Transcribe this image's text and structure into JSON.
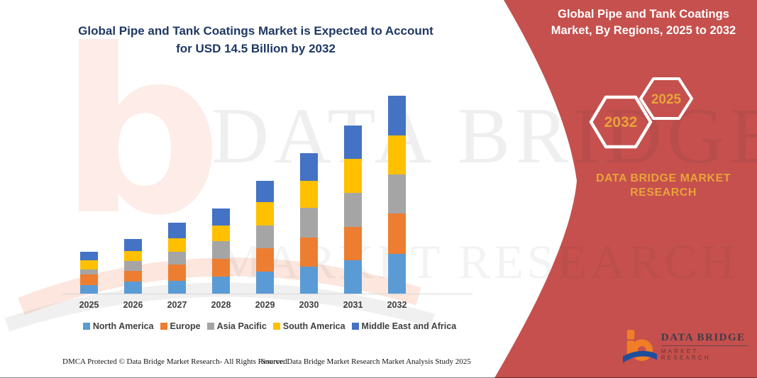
{
  "page": {
    "title_line1": "Global Pipe and Tank Coatings Market is Expected to Account",
    "title_line2": "for USD 14.5 Billion by 2032",
    "title_color": "#1F3864"
  },
  "banner": {
    "heading_line1": "Global Pipe and Tank Coatings",
    "heading_line2": "Market, By Regions, 2025 to 2032",
    "hexagons": [
      {
        "label": "2032"
      },
      {
        "label": "2025"
      }
    ],
    "brand_line1": "DATA BRIDGE MARKET",
    "brand_line2": "RESEARCH",
    "colors": {
      "background": "#C5504D",
      "accent_gold": "#E9A23B"
    }
  },
  "chart_data": {
    "type": "bar",
    "stacked": true,
    "title": "",
    "xlabel": "",
    "ylabel": "",
    "units": "USD Billion",
    "ylim": [
      0,
      15
    ],
    "grid": false,
    "legend_position": "bottom",
    "categories": [
      "2025",
      "2026",
      "2027",
      "2028",
      "2029",
      "2030",
      "2031",
      "2032"
    ],
    "series": [
      {
        "name": "North America",
        "color": "#5B9BD5",
        "values": [
          0.64,
          0.9,
          0.94,
          1.25,
          1.6,
          1.98,
          2.45,
          2.9
        ]
      },
      {
        "name": "Europe",
        "color": "#ED7D31",
        "values": [
          0.78,
          0.78,
          1.18,
          1.3,
          1.73,
          2.13,
          2.43,
          2.95
        ]
      },
      {
        "name": "Asia Pacific",
        "color": "#A5A5A5",
        "values": [
          0.38,
          0.74,
          0.95,
          1.3,
          1.65,
          2.17,
          2.5,
          2.86
        ]
      },
      {
        "name": "South America",
        "color": "#FFC000",
        "values": [
          0.66,
          0.73,
          0.99,
          1.13,
          1.7,
          1.99,
          2.5,
          2.86
        ]
      },
      {
        "name": "Middle East and Africa",
        "color": "#4472C4",
        "values": [
          0.61,
          0.9,
          1.13,
          1.27,
          1.54,
          2.03,
          2.45,
          2.94
        ]
      }
    ]
  },
  "watermarks": {
    "brand": "DATA BRIDGE",
    "sub": "MARKET RESEARCH"
  },
  "logo": {
    "brand": "DATA BRIDGE",
    "sub": "MARKET RESEARCH"
  },
  "footer": {
    "left": "DMCA Protected © Data Bridge Market Research-  All Rights Reserved.",
    "right": "Source: Data Bridge Market Research  Market Analysis Study 2025"
  }
}
